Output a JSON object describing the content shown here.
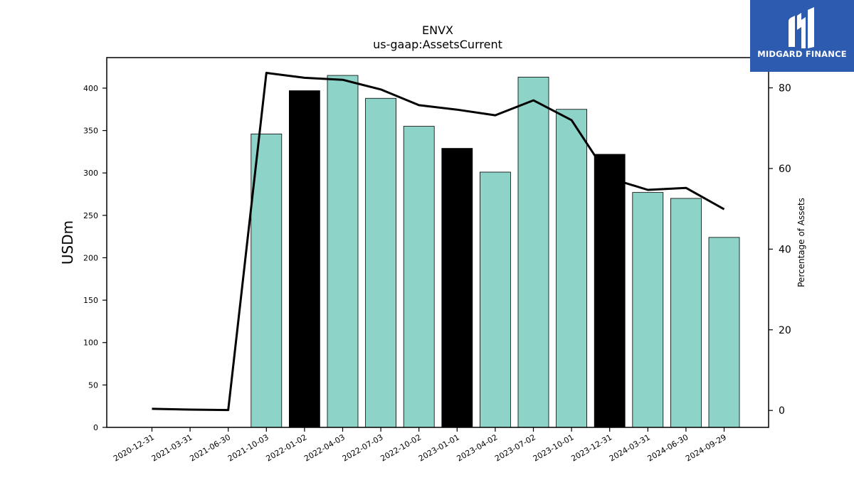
{
  "logo": {
    "text": "MIDGARD FINANCE",
    "bg_color": "#2d5bb0",
    "icon": "midgard-logo-icon"
  },
  "chart_data": {
    "type": "bar",
    "title": "ENVX",
    "subtitle": "us-gaap:AssetsCurrent",
    "ylabel": "USDm",
    "y2label": "Percentage of Assets",
    "categories": [
      "2020-12-31",
      "2021-03-31",
      "2021-06-30",
      "2021-10-03",
      "2022-01-02",
      "2022-04-03",
      "2022-07-03",
      "2022-10-02",
      "2023-01-01",
      "2023-04-02",
      "2023-07-02",
      "2023-10-01",
      "2023-12-31",
      "2024-03-31",
      "2024-06-30",
      "2024-09-29"
    ],
    "values": [
      null,
      null,
      null,
      346,
      397,
      415,
      388,
      355,
      329,
      301,
      413,
      375,
      322,
      277,
      270,
      224
    ],
    "bar_colors": [
      "#8dd3c7",
      "#8dd3c7",
      "#8dd3c7",
      "#8dd3c7",
      "#000000",
      "#8dd3c7",
      "#8dd3c7",
      "#8dd3c7",
      "#000000",
      "#8dd3c7",
      "#8dd3c7",
      "#8dd3c7",
      "#000000",
      "#8dd3c7",
      "#8dd3c7",
      "#8dd3c7"
    ],
    "line_series": {
      "values": [
        0.4,
        0.2,
        0.1,
        83.7,
        82.5,
        82.0,
        79.6,
        75.7,
        74.6,
        73.2,
        76.9,
        72.0,
        57.6,
        54.7,
        55.2,
        49.9
      ],
      "color": "#000000"
    },
    "ylim": [
      0,
      436
    ],
    "y2lim": [
      -4.2,
      87.5
    ],
    "yticks": [
      0,
      50,
      100,
      150,
      200,
      250,
      300,
      350,
      400
    ],
    "y2ticks": [
      0,
      20,
      40,
      60,
      80
    ],
    "grid": false,
    "legend": false
  }
}
